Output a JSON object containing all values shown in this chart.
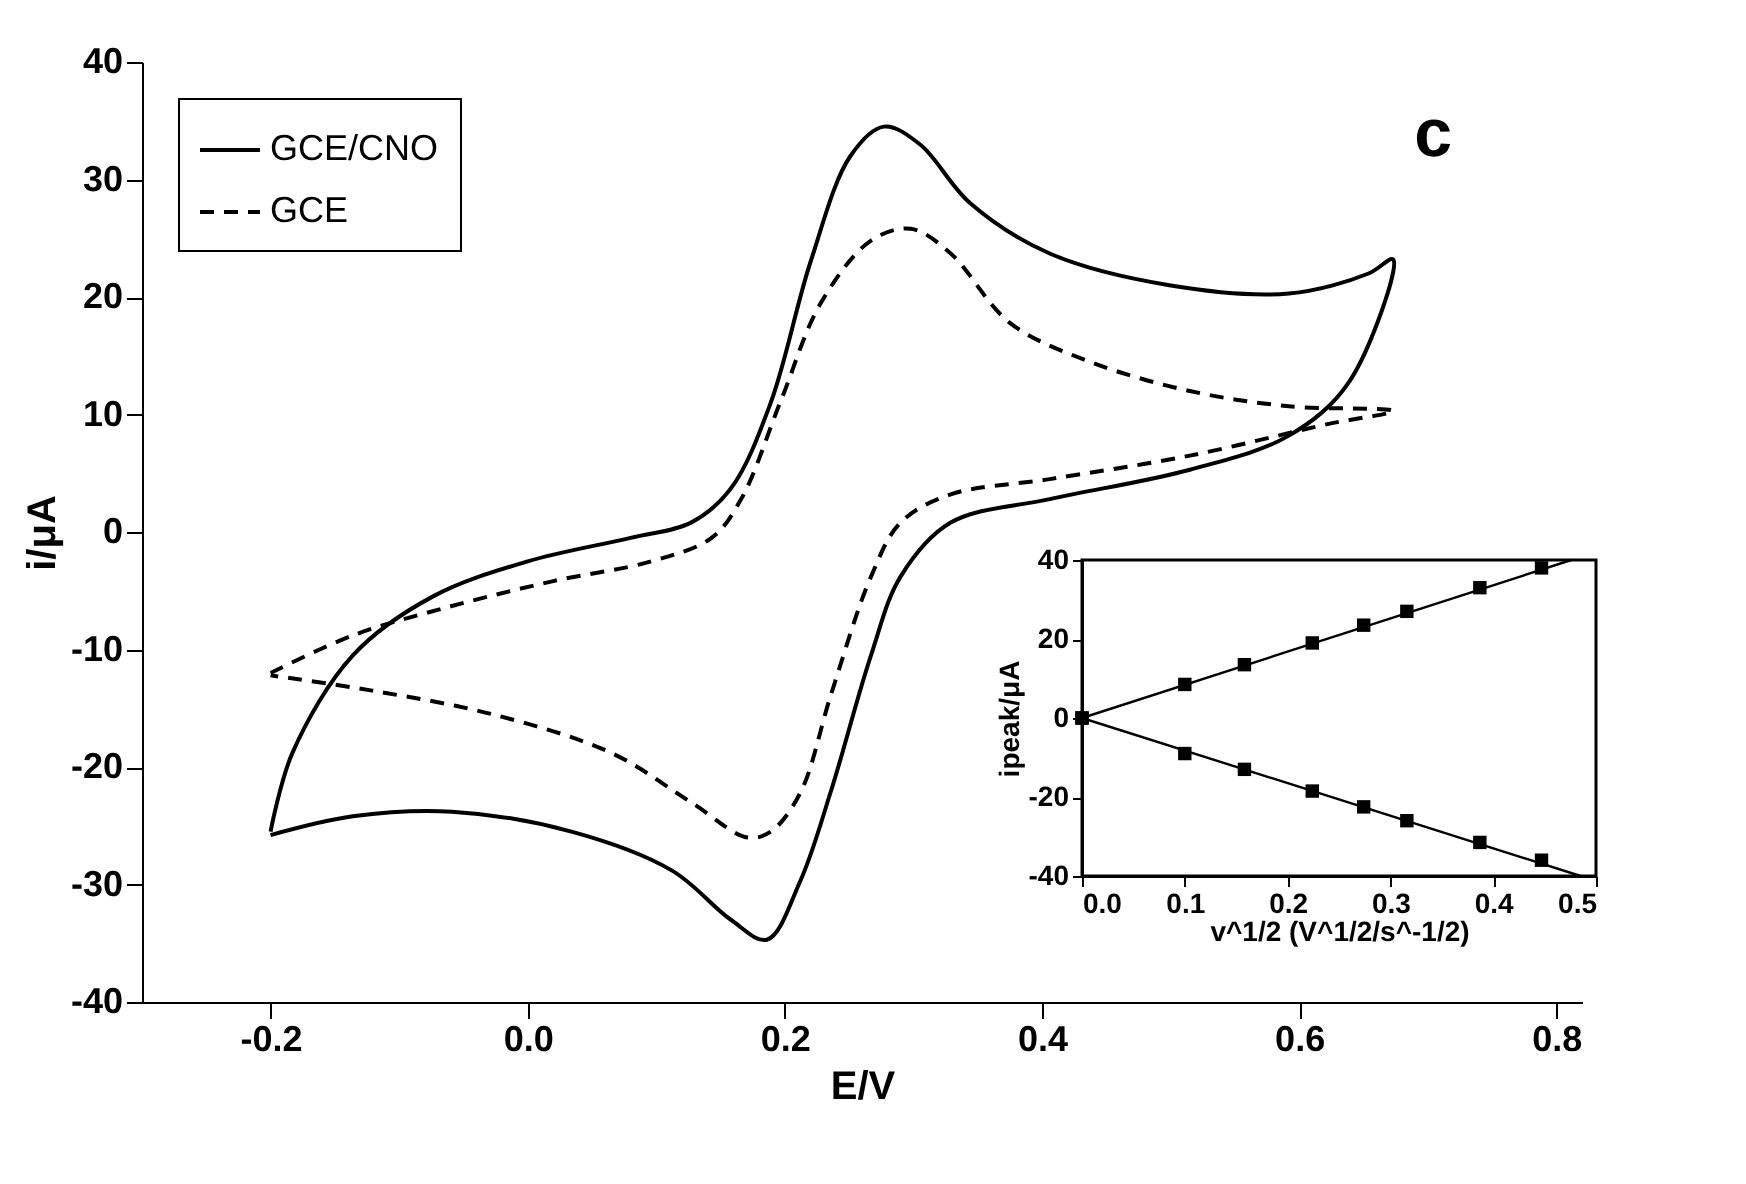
{
  "chart_data": [
    {
      "type": "line",
      "xlabel": "E/V",
      "ylabel": "i/μA",
      "xlim": [
        -0.3,
        0.82
      ],
      "ylim": [
        -40,
        40
      ],
      "xticks": [
        {
          "value": -0.2,
          "label": "-0.2"
        },
        {
          "value": 0,
          "label": "0.0"
        },
        {
          "value": 0.2,
          "label": "0.2"
        },
        {
          "value": 0.4,
          "label": "0.4"
        },
        {
          "value": 0.6,
          "label": "0.6"
        },
        {
          "value": 0.8,
          "label": "0.8"
        }
      ],
      "yticks": [
        -40,
        -30,
        -20,
        -10,
        0,
        10,
        20,
        30,
        40
      ],
      "legend": "top left",
      "annotations": [
        "c"
      ],
      "series": [
        {
          "name": "GCE/CNO",
          "color": "#000000",
          "line_style": "solid",
          "x": [
            -0.2,
            -0.183,
            -0.136,
            -0.074,
            0,
            0.08,
            0.127,
            0.158,
            0.189,
            0.22,
            0.251,
            0.277,
            0.305,
            0.344,
            0.406,
            0.499,
            0.592,
            0.654,
            0.673,
            0.639,
            0.592,
            0.515,
            0.406,
            0.329,
            0.29,
            0.267,
            0.236,
            0.212,
            0.186,
            0.158,
            0.112,
            0.034,
            -0.059,
            -0.136,
            -0.2
          ],
          "values": [
            -25.5,
            -18.8,
            -10.5,
            -5.5,
            -2.5,
            -0.5,
            0.8,
            3.7,
            11,
            23,
            32,
            34.5,
            33,
            28,
            23.7,
            21,
            20.3,
            22,
            23.2,
            12.8,
            8.2,
            5.3,
            2.8,
            0.8,
            -3.8,
            -10.5,
            -22,
            -29.7,
            -34.7,
            -33,
            -28.8,
            -25.5,
            -23.8,
            -24.2,
            -25.8
          ]
        },
        {
          "name": "GCE",
          "color": "#000000",
          "line_style": "dashed",
          "x": [
            -0.2,
            -0.136,
            -0.059,
            0.019,
            0.096,
            0.143,
            0.166,
            0.197,
            0.228,
            0.267,
            0.298,
            0.329,
            0.375,
            0.437,
            0.515,
            0.592,
            0.673,
            0.623,
            0.515,
            0.406,
            0.329,
            0.29,
            0.267,
            0.236,
            0.212,
            0.189,
            0.171,
            0.127,
            0.065,
            -0.028,
            -0.121,
            -0.2
          ],
          "values": [
            -12,
            -8.8,
            -6.3,
            -4.2,
            -2.5,
            -0.5,
            2.8,
            11.2,
            19.5,
            24.8,
            25.8,
            23.7,
            17.8,
            14.5,
            12,
            10.7,
            10.3,
            9.2,
            6.5,
            4.5,
            3.2,
            0.8,
            -3.8,
            -13.8,
            -22.2,
            -25.5,
            -26,
            -23,
            -18.8,
            -15.5,
            -13.5,
            -12.2
          ]
        }
      ]
    },
    {
      "type": "scatter",
      "xlabel": "v^1/2 (V^1/2/s^-1/2)",
      "ylabel": "ipeak/μA",
      "xlim": [
        0,
        0.5
      ],
      "ylim": [
        -40,
        40
      ],
      "xticks": [
        {
          "value": 0,
          "label": "0.0"
        },
        {
          "value": 0.1,
          "label": "0.1"
        },
        {
          "value": 0.2,
          "label": "0.2"
        },
        {
          "value": 0.3,
          "label": "0.3"
        },
        {
          "value": 0.4,
          "label": "0.4"
        },
        {
          "value": 0.5,
          "label": "0.5"
        }
      ],
      "yticks": [
        -40,
        -20,
        0,
        20,
        40
      ],
      "marker": "square",
      "x": [
        0,
        0.1,
        0.158,
        0.224,
        0.274,
        0.316,
        0.387,
        0.447
      ],
      "series": [
        {
          "color": "#000000",
          "values": [
            0,
            8.5,
            13.5,
            19,
            23.5,
            27,
            33,
            38
          ]
        },
        {
          "color": "#000000",
          "values": [
            0,
            -9,
            -13,
            -18.5,
            -22.5,
            -26,
            -31.5,
            -36
          ]
        },
        {
          "type": "line",
          "marker": "none",
          "color": "#000000",
          "x": [
            0,
            0.476
          ],
          "values": [
            0,
            40
          ]
        },
        {
          "type": "line",
          "marker": "none",
          "color": "#000000",
          "x": [
            0,
            0.485
          ],
          "values": [
            0,
            -40
          ]
        }
      ]
    }
  ]
}
